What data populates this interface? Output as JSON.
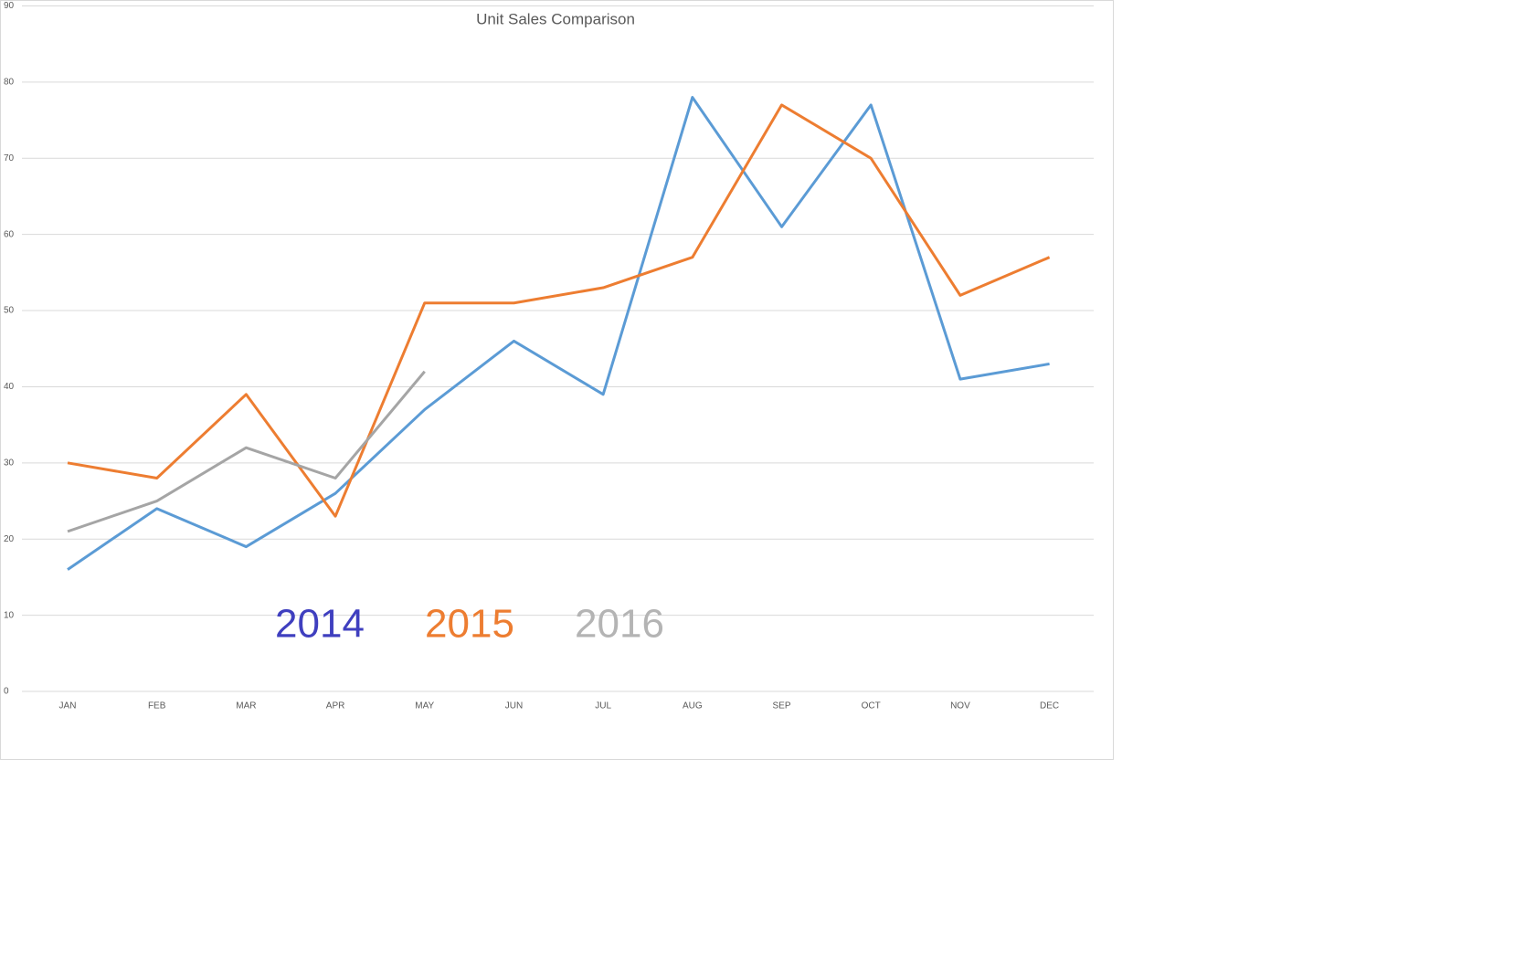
{
  "chart_data": {
    "type": "line",
    "title": "Unit Sales Comparison",
    "categories": [
      "JAN",
      "FEB",
      "MAR",
      "APR",
      "MAY",
      "JUN",
      "JUL",
      "AUG",
      "SEP",
      "OCT",
      "NOV",
      "DEC"
    ],
    "series": [
      {
        "name": "2014",
        "color": "#5b9bd5",
        "legend_color": "#3f3fbf",
        "values": [
          16,
          24,
          19,
          26,
          37,
          46,
          39,
          78,
          61,
          77,
          41,
          43
        ]
      },
      {
        "name": "2015",
        "color": "#ed7d31",
        "legend_color": "#ed7d31",
        "values": [
          30,
          28,
          39,
          23,
          51,
          51,
          53,
          57,
          77,
          70,
          52,
          57
        ]
      },
      {
        "name": "2016",
        "color": "#a5a5a5",
        "legend_color": "#b4b4b4",
        "values": [
          21,
          25,
          32,
          28,
          42,
          null,
          null,
          null,
          null,
          null,
          null,
          null
        ]
      }
    ],
    "ylim": [
      0,
      90
    ],
    "yticks": [
      0,
      10,
      20,
      30,
      40,
      50,
      60,
      70,
      80,
      90
    ],
    "grid": true
  }
}
